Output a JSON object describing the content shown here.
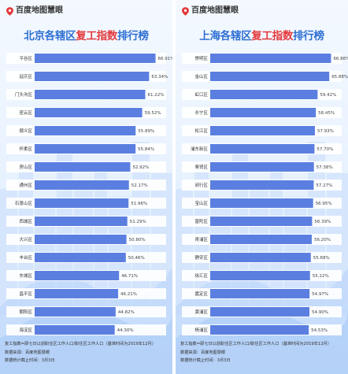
{
  "brand": {
    "logo_text": "百度地图慧眼"
  },
  "colors": {
    "bar": "#5b7fe0",
    "bar_bg": "#ffffff",
    "title": "#2e6fd3",
    "title_highlight": "#e4393c",
    "value_text": "#444444",
    "label_text": "#333333"
  },
  "panels": [
    {
      "title_prefix": "北京各辖区",
      "title_highlight": "复工指数",
      "title_suffix": "排行榜",
      "notes": {
        "definition": "复工指数=即七日以前职住区工作人口/职住区工作人口（基准时间为2019年12月）",
        "source": "数据来源：百度地图慧眼",
        "cutoff": "数据统计截止时间：3月3日"
      }
    },
    {
      "title_prefix": "上海各辖区",
      "title_highlight": "复工指数",
      "title_suffix": "排行榜",
      "notes": {
        "definition": "复工指数=即七日以前职住区工作人口/职住区工作人口（基准时间为2019年12月）",
        "source": "数据来源：百度地图慧眼",
        "cutoff": "数据统计截止时间：3月3日"
      }
    }
  ],
  "chart_data": [
    {
      "type": "bar",
      "orientation": "horizontal",
      "title": "北京各辖区复工指数排行榜",
      "categories": [
        "平谷区",
        "延庆区",
        "门头沟区",
        "密云区",
        "顺义区",
        "怀柔区",
        "房山区",
        "通州区",
        "石景山区",
        "西城区",
        "大兴区",
        "丰台区",
        "东城区",
        "昌平区",
        "朝阳区",
        "海淀区"
      ],
      "values": [
        66.91,
        63.34,
        61.22,
        59.52,
        55.89,
        55.84,
        52.92,
        52.17,
        51.96,
        51.29,
        50.8,
        50.46,
        46.71,
        46.21,
        44.82,
        44.3
      ],
      "value_labels": [
        "66.91%",
        "63.34%",
        "61.22%",
        "59.52%",
        "55.89%",
        "55.84%",
        "52.92%",
        "52.17%",
        "51.96%",
        "51.29%",
        "50.80%",
        "50.46%",
        "46.71%",
        "46.21%",
        "44.82%",
        "44.30%"
      ],
      "unit": "%",
      "xlim": [
        0,
        100
      ]
    },
    {
      "type": "bar",
      "orientation": "horizontal",
      "title": "上海各辖区复工指数排行榜",
      "categories": [
        "崇明区",
        "金山区",
        "虹口区",
        "长宁区",
        "松江区",
        "浦东新区",
        "奉贤区",
        "闵行区",
        "宝山区",
        "普陀区",
        "青浦区",
        "静安区",
        "徐汇区",
        "嘉定区",
        "黄浦区",
        "杨浦区"
      ],
      "values": [
        66.86,
        65.88,
        59.42,
        58.45,
        57.93,
        57.7,
        57.38,
        57.27,
        56.95,
        56.39,
        56.2,
        55.68,
        55.22,
        54.97,
        54.9,
        54.53
      ],
      "value_labels": [
        "66.86%",
        "65.88%",
        "59.42%",
        "58.45%",
        "57.93%",
        "57.70%",
        "57.38%",
        "57.27%",
        "56.95%",
        "56.39%",
        "56.20%",
        "55.68%",
        "55.22%",
        "54.97%",
        "54.90%",
        "54.53%"
      ],
      "unit": "%",
      "xlim": [
        0,
        100
      ]
    }
  ]
}
